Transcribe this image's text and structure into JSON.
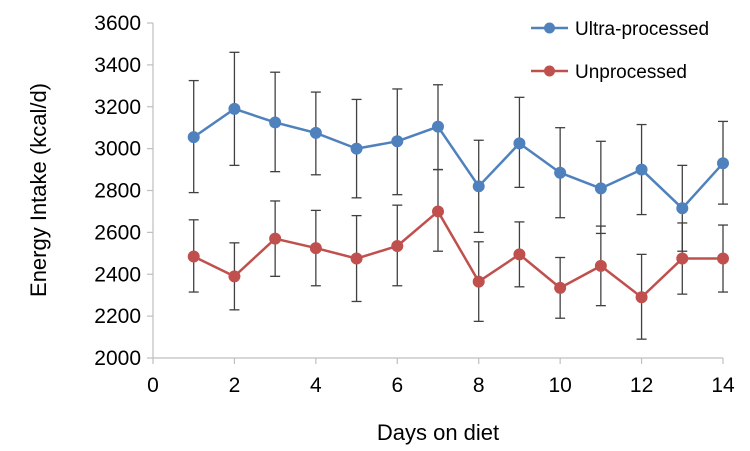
{
  "chart_data": {
    "type": "line",
    "title": "",
    "xlabel": "Days on diet",
    "ylabel": "Energy Intake (kcal/d)",
    "xlim": [
      0,
      14
    ],
    "ylim": [
      2000,
      3600
    ],
    "x_ticks": [
      0,
      2,
      4,
      6,
      8,
      10,
      12,
      14
    ],
    "y_ticks": [
      2000,
      2200,
      2400,
      2600,
      2800,
      3000,
      3200,
      3400,
      3600
    ],
    "grid": false,
    "legend": "top-right",
    "error_bars": true,
    "x": [
      1,
      2,
      3,
      4,
      5,
      6,
      7,
      8,
      9,
      10,
      11,
      12,
      13,
      14
    ],
    "series": [
      {
        "name": "Ultra-processed",
        "color": "#4f81bd",
        "values": [
          3055,
          3190,
          3125,
          3075,
          3000,
          3035,
          3105,
          2820,
          3025,
          2885,
          2810,
          2900,
          2715,
          2930
        ],
        "error_low": [
          2790,
          2920,
          2890,
          2875,
          2765,
          2780,
          2900,
          2600,
          2815,
          2670,
          2595,
          2685,
          2510,
          2735
        ],
        "error_high": [
          3325,
          3460,
          3365,
          3270,
          3235,
          3285,
          3305,
          3040,
          3245,
          3100,
          3035,
          3115,
          2920,
          3130
        ]
      },
      {
        "name": "Unprocessed",
        "color": "#c0504d",
        "values": [
          2485,
          2390,
          2570,
          2525,
          2475,
          2535,
          2700,
          2365,
          2495,
          2335,
          2440,
          2290,
          2475,
          2475
        ],
        "error_low": [
          2315,
          2230,
          2390,
          2345,
          2270,
          2345,
          2510,
          2175,
          2340,
          2190,
          2250,
          2090,
          2305,
          2315
        ],
        "error_high": [
          2660,
          2550,
          2750,
          2705,
          2680,
          2730,
          2900,
          2555,
          2650,
          2480,
          2630,
          2495,
          2645,
          2635
        ]
      }
    ]
  }
}
